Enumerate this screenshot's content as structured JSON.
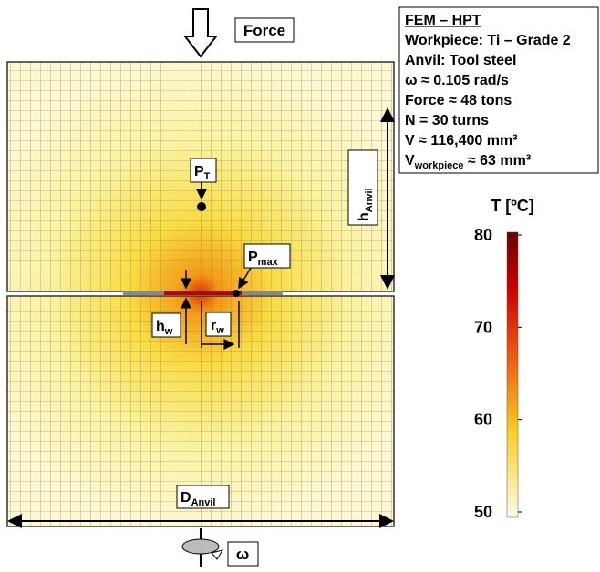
{
  "force_label": "Force",
  "info": {
    "title": "FEM – HPT",
    "lines": [
      "Workpiece: Ti – Grade 2",
      "Anvil: Tool steel",
      "ω ≈ 0.105 rad/s",
      "Force ≈ 48 tons",
      "N = 30 turns",
      "V ≈ 116,400 mm³"
    ],
    "last_line": {
      "main": "V",
      "sub": "workpiece",
      "rest": " ≈ 63 mm³"
    }
  },
  "labels": {
    "p_t": {
      "main": "P",
      "sub": "T"
    },
    "p_max": {
      "main": "P",
      "sub": "max"
    },
    "h_anvil": {
      "main": "h",
      "sub": "Anvil"
    },
    "h_w": {
      "main": "h",
      "sub": "w"
    },
    "r_w": {
      "main": "r",
      "sub": "w"
    },
    "d_anvil": {
      "main": "D",
      "sub": "Anvil"
    },
    "omega": "ω"
  },
  "colorbar": {
    "title": "T [ºC]",
    "lim": [
      50,
      80
    ],
    "ticks": [
      80,
      70,
      60,
      50
    ]
  }
}
